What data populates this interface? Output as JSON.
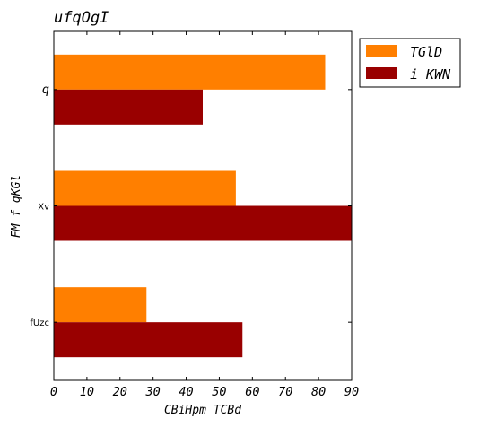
{
  "chart_data": {
    "type": "bar",
    "orientation": "horizontal",
    "title": "ufqOgI",
    "xlabel": "CBiHpm TCBd",
    "ylabel": "FM f qKGl",
    "categories": [
      "q",
      "Xv",
      "fUzc"
    ],
    "series": [
      {
        "name": "TGlD",
        "color": "#ff7f00",
        "values": [
          82,
          55,
          28
        ]
      },
      {
        "name": "i KWN",
        "color": "#990000",
        "values": [
          45,
          90,
          57
        ]
      }
    ],
    "xlim": [
      0,
      90
    ],
    "xticks": [
      0,
      10,
      20,
      30,
      40,
      50,
      60,
      70,
      80,
      90
    ],
    "grid": false,
    "legend_position": "outside-top-right"
  }
}
